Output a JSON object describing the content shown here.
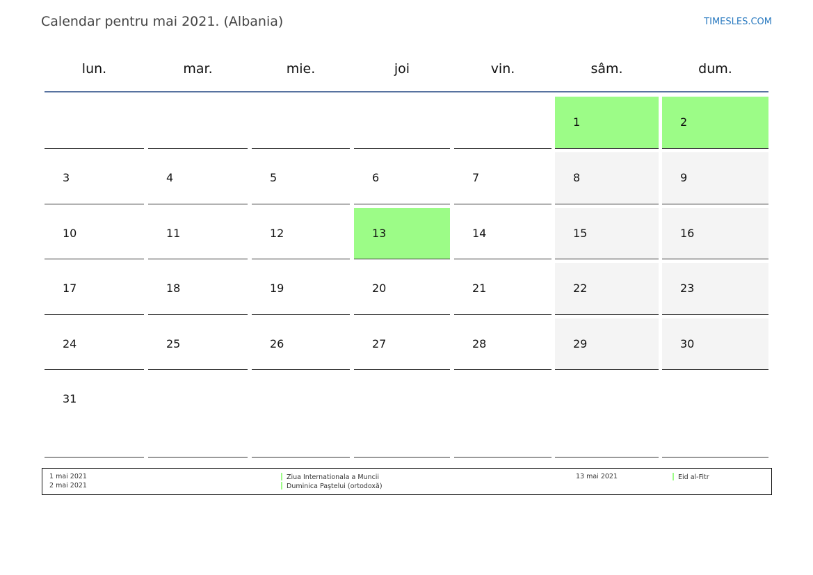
{
  "header": {
    "title": "Calendar pentru mai 2021. (Albania)",
    "brand": "TIMESLES.COM"
  },
  "weekdays": [
    "lun.",
    "mar.",
    "mie.",
    "joi",
    "vin.",
    "sâm.",
    "dum."
  ],
  "weeks": [
    [
      null,
      null,
      null,
      null,
      null,
      "1",
      "2"
    ],
    [
      "3",
      "4",
      "5",
      "6",
      "7",
      "8",
      "9"
    ],
    [
      "10",
      "11",
      "12",
      "13",
      "14",
      "15",
      "16"
    ],
    [
      "17",
      "18",
      "19",
      "20",
      "21",
      "22",
      "23"
    ],
    [
      "24",
      "25",
      "26",
      "27",
      "28",
      "29",
      "30"
    ],
    [
      "31",
      null,
      null,
      null,
      null,
      null,
      null
    ]
  ],
  "holidays": [
    "1",
    "2",
    "13"
  ],
  "colors": {
    "holiday": "#9cfc87",
    "weekend": "#f4f4f4",
    "header_rule": "#5873a0",
    "brand": "#2a7ac0"
  },
  "legend": [
    {
      "date": "1 mai 2021",
      "name": "Ziua Internationala a Muncii"
    },
    {
      "date": "2 mai 2021",
      "name": "Duminica Paştelui (ortodoxă)"
    },
    {
      "date": "13 mai 2021",
      "name": "Eid al-Fitr"
    }
  ]
}
